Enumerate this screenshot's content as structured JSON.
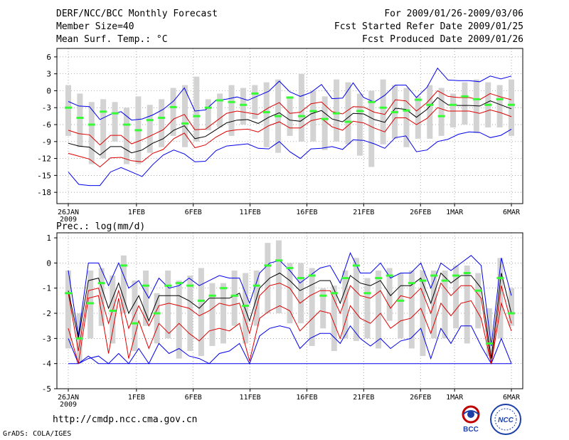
{
  "header": {
    "title": "DERF/NCC/BCC Monthly Forecast",
    "member_size": "Member Size=40",
    "variable": "Mean Surf. Temp.: °C",
    "period": "For 2009/01/26-2009/03/06",
    "fcst_started": "Fcst Started Refer Date 2009/01/25",
    "fcst_produced": "Fcst Produced Date 2009/01/26"
  },
  "footer": {
    "url": "http://cmdp.ncc.cma.gov.cn",
    "credit": "GrADS: COLA/IGES",
    "logo_bcc_text": "BCC",
    "logo_ncc_text": "NCC"
  },
  "colors": {
    "box": "#d3d3d3",
    "green": "#33ff33",
    "mean": "#000000",
    "quartile": "#dd0000",
    "envelope": "#0000ee",
    "grid": "#888888"
  },
  "chart_data": [
    {
      "type": "line",
      "title": "Mean Surf. Temp.: °C",
      "xlabel": "",
      "ylabel": "°C",
      "year_label": "2009",
      "x_tick_labels": [
        "26JAN",
        "1FEB",
        "6FEB",
        "11FEB",
        "16FEB",
        "21FEB",
        "26FEB",
        "1MAR",
        "6MAR"
      ],
      "x_tick_days": [
        0,
        6,
        11,
        16,
        21,
        26,
        31,
        34,
        39
      ],
      "days": 40,
      "ylim": [
        -20,
        7.5
      ],
      "y_ticks": [
        6,
        3,
        0,
        -3,
        -6,
        -9,
        -12,
        -15,
        -18
      ],
      "grid": true,
      "series": [
        {
          "name": "max",
          "values": [
            -1.9,
            -2.7,
            -2.8,
            -5.1,
            -4.2,
            -3.7,
            -5.2,
            -5.0,
            -4.3,
            -3.3,
            -1.8,
            0.5,
            -3.6,
            -3.4,
            -1.7,
            -1.5,
            -1.1,
            -1.7,
            -0.9,
            -0.1,
            1.7,
            -0.2,
            -1.0,
            -0.3,
            1.1,
            -1.4,
            -1.3,
            1.4,
            -1.2,
            -2.0,
            -0.8,
            1.0,
            1.0,
            -1.2,
            0.6,
            4.0,
            1.9,
            1.8,
            1.8,
            1.6,
            2.6,
            2.1,
            2.6
          ]
        },
        {
          "name": "upper",
          "values": [
            -7.0,
            -7.6,
            -7.8,
            -9.6,
            -7.9,
            -7.9,
            -9.4,
            -8.7,
            -7.8,
            -6.9,
            -5.0,
            -4.2,
            -6.9,
            -6.8,
            -5.4,
            -4.0,
            -3.6,
            -3.9,
            -4.2,
            -3.0,
            -2.1,
            -4.0,
            -3.8,
            -2.3,
            -2.0,
            -3.7,
            -4.1,
            -2.8,
            -2.9,
            -3.8,
            -4.2,
            -1.6,
            -1.8,
            -3.6,
            -2.1,
            0.0,
            -1.0,
            -1.2,
            -1.2,
            -1.6,
            -0.5,
            -1.1,
            -1.6
          ]
        },
        {
          "name": "mean",
          "values": [
            -9.3,
            -9.8,
            -10.0,
            -11.4,
            -9.9,
            -9.9,
            -11.0,
            -10.5,
            -9.3,
            -8.5,
            -7.0,
            -6.2,
            -8.5,
            -8.1,
            -6.9,
            -5.7,
            -5.2,
            -5.1,
            -5.8,
            -4.7,
            -3.9,
            -5.2,
            -5.4,
            -4.1,
            -3.5,
            -5.0,
            -5.5,
            -4.0,
            -4.1,
            -5.1,
            -5.6,
            -3.1,
            -3.3,
            -4.7,
            -3.3,
            -1.2,
            -2.5,
            -2.6,
            -2.6,
            -2.7,
            -1.8,
            -2.5,
            -3.2
          ]
        },
        {
          "name": "lower",
          "values": [
            -11.1,
            -11.6,
            -12.1,
            -13.5,
            -11.9,
            -11.8,
            -12.4,
            -12.6,
            -11.1,
            -10.4,
            -8.5,
            -7.5,
            -10.1,
            -9.6,
            -8.2,
            -7.2,
            -6.9,
            -6.8,
            -7.3,
            -6.2,
            -5.5,
            -6.6,
            -6.6,
            -5.3,
            -4.9,
            -6.4,
            -7.0,
            -5.4,
            -5.7,
            -6.6,
            -7.3,
            -4.8,
            -4.8,
            -6.0,
            -4.9,
            -3.0,
            -3.6,
            -3.6,
            -3.6,
            -4.0,
            -3.4,
            -3.9,
            -4.6
          ]
        },
        {
          "name": "min",
          "values": [
            -14.4,
            -16.6,
            -16.8,
            -16.8,
            -14.4,
            -13.6,
            -14.4,
            -15.2,
            -13.1,
            -11.4,
            -10.5,
            -11.2,
            -12.6,
            -12.5,
            -10.6,
            -9.8,
            -9.6,
            -9.4,
            -10.2,
            -10.3,
            -9.0,
            -10.8,
            -12.0,
            -10.3,
            -10.2,
            -9.9,
            -10.4,
            -8.7,
            -8.8,
            -9.4,
            -10.2,
            -8.3,
            -8.0,
            -10.8,
            -10.5,
            -9.0,
            -8.6,
            -7.7,
            -7.3,
            -7.4,
            -8.3,
            -7.9,
            -6.8
          ]
        },
        {
          "name": "green",
          "values": [
            -3.0,
            -4.8,
            -6.0,
            -3.7,
            -4.0,
            -6.0,
            -7.0,
            -5.2,
            -4.8,
            -2.9,
            -5.8,
            -4.5,
            -3.0,
            -1.7,
            -2.0,
            -2.5,
            -0.5,
            -3.8,
            -4.5,
            -1.2,
            -4.5,
            -3.6,
            -5.0,
            -4.0,
            -5.5,
            -3.6,
            -2.0,
            -3.0,
            -3.8,
            -3.5,
            -1.6,
            -2.5,
            -4.5,
            -2.5,
            -1.0,
            -1.5,
            -2.5,
            -1.5,
            -2.5
          ]
        },
        {
          "name": "box_top",
          "values": [
            1.0,
            -0.5,
            -2.0,
            -1.5,
            -2.0,
            -3.0,
            -1.0,
            -2.5,
            -1.5,
            0.5,
            1.0,
            2.5,
            -1.5,
            -0.5,
            1.0,
            0.5,
            1.0,
            1.5,
            2.0,
            -1.0,
            3.0,
            0.0,
            -1.0,
            2.0,
            1.5,
            -0.5,
            0.0,
            2.0,
            1.0,
            0.5,
            -1.0,
            1.0,
            0.5,
            -0.5,
            1.5,
            2.0,
            1.5,
            1.0,
            2.0
          ]
        },
        {
          "name": "box_bottom",
          "values": [
            -8.0,
            -10.0,
            -13.0,
            -12.0,
            -9.0,
            -13.0,
            -13.0,
            -11.0,
            -10.0,
            -8.0,
            -10.0,
            -9.0,
            -7.0,
            -6.5,
            -8.0,
            -6.0,
            -5.0,
            -10.0,
            -11.0,
            -8.0,
            -9.0,
            -9.0,
            -10.5,
            -9.0,
            -9.5,
            -11.5,
            -13.5,
            -9.5,
            -8.5,
            -10.0,
            -8.5,
            -8.5,
            -8.0,
            -6.5,
            -6.0,
            -7.5,
            -6.5,
            -6.5,
            -8.0
          ]
        }
      ]
    },
    {
      "type": "line",
      "title": "Prec.: log(mm/d)",
      "xlabel": "",
      "ylabel": "log(mm/d)",
      "year_label": "2009",
      "x_tick_labels": [
        "26JAN",
        "1FEB",
        "6FEB",
        "11FEB",
        "16FEB",
        "21FEB",
        "26FEB",
        "1MAR",
        "6MAR"
      ],
      "x_tick_days": [
        0,
        6,
        11,
        16,
        21,
        26,
        31,
        34,
        39
      ],
      "days": 40,
      "ylim": [
        -5,
        1.2
      ],
      "y_ticks": [
        1,
        0,
        -1,
        -2,
        -3,
        -4,
        -5
      ],
      "grid": true,
      "series": [
        {
          "name": "max",
          "values": [
            -0.3,
            -2.9,
            0.0,
            0.0,
            -0.9,
            0.0,
            -1.0,
            -0.7,
            -1.4,
            -0.6,
            -1.0,
            -0.9,
            -0.6,
            -0.9,
            -0.7,
            -0.5,
            -0.6,
            -0.6,
            -1.6,
            -0.4,
            0.0,
            0.1,
            -0.3,
            -0.8,
            -0.5,
            -0.2,
            -0.1,
            -0.8,
            0.4,
            -0.4,
            -0.4,
            0.0,
            -0.6,
            -0.4,
            -0.4,
            0.0,
            -1.0,
            0.0,
            -0.3,
            0.0,
            0.3,
            -0.1,
            -3.3,
            0.2,
            -1.3
          ]
        },
        {
          "name": "mean",
          "values": [
            -1.1,
            -3.0,
            -0.7,
            -0.6,
            -1.8,
            -0.8,
            -2.0,
            -1.3,
            -2.3,
            -1.3,
            -1.3,
            -1.3,
            -1.5,
            -1.8,
            -1.4,
            -1.4,
            -1.4,
            -1.2,
            -2.3,
            -1.0,
            -0.6,
            -0.4,
            -0.7,
            -1.1,
            -0.9,
            -0.7,
            -0.7,
            -1.6,
            -0.5,
            -0.8,
            -0.9,
            -0.7,
            -1.3,
            -0.9,
            -0.9,
            -0.6,
            -1.6,
            -0.4,
            -0.8,
            -0.5,
            -0.5,
            -1.0,
            -3.8,
            -0.4,
            -2.0
          ]
        },
        {
          "name": "upper",
          "values": [
            -1.2,
            -3.5,
            -1.1,
            -1.0,
            -2.4,
            -1.1,
            -2.6,
            -1.7,
            -2.5,
            -1.7,
            -1.6,
            -1.7,
            -1.8,
            -2.1,
            -1.9,
            -1.6,
            -1.7,
            -1.6,
            -2.8,
            -1.3,
            -0.9,
            -0.8,
            -1.0,
            -1.6,
            -1.3,
            -1.1,
            -1.1,
            -2.0,
            -0.9,
            -1.3,
            -1.4,
            -1.1,
            -1.8,
            -1.3,
            -1.4,
            -1.0,
            -2.0,
            -0.8,
            -1.3,
            -0.9,
            -0.9,
            -1.4,
            -4.0,
            -0.9,
            -2.4
          ]
        },
        {
          "name": "lower",
          "values": [
            -2.6,
            -4.0,
            -1.4,
            -1.3,
            -3.6,
            -1.4,
            -3.8,
            -2.3,
            -3.4,
            -2.4,
            -2.8,
            -2.4,
            -2.8,
            -3.1,
            -2.7,
            -2.6,
            -2.7,
            -2.4,
            -3.9,
            -2.2,
            -1.9,
            -1.7,
            -1.9,
            -2.7,
            -2.3,
            -1.9,
            -2.0,
            -3.0,
            -1.7,
            -2.2,
            -2.4,
            -2.0,
            -2.6,
            -2.3,
            -2.2,
            -1.8,
            -2.8,
            -1.6,
            -2.1,
            -1.6,
            -1.5,
            -2.2,
            -4.0,
            -1.6,
            -2.7
          ]
        },
        {
          "name": "min",
          "values": [
            -3.0,
            -4.0,
            -3.8,
            -3.7,
            -4.0,
            -3.6,
            -4.0,
            -3.4,
            -4.0,
            -3.2,
            -3.6,
            -3.4,
            -3.7,
            -3.8,
            -4.0,
            -3.6,
            -3.5,
            -3.2,
            -4.0,
            -2.9,
            -2.6,
            -2.5,
            -2.6,
            -3.4,
            -3.0,
            -2.8,
            -2.8,
            -3.2,
            -2.5,
            -3.0,
            -3.3,
            -3.0,
            -3.4,
            -3.1,
            -3.0,
            -2.6,
            -3.8,
            -2.6,
            -3.2,
            -2.5,
            -2.5,
            -3.3,
            -4.0,
            -3.0,
            -4.0
          ]
        },
        {
          "name": "floor",
          "values": [
            -4.0,
            -4.0,
            -3.7,
            -4.0,
            -4.0,
            -4.0,
            -4.0,
            -4.0,
            -4.0,
            -4.0,
            -4.0,
            -4.0,
            -4.0,
            -4.0,
            -4.0,
            -4.0,
            -4.0,
            -4.0,
            -4.0,
            -4.0,
            -4.0,
            -4.0,
            -4.0,
            -4.0,
            -4.0,
            -4.0,
            -4.0,
            -4.0,
            -4.0,
            -4.0,
            -4.0,
            -4.0,
            -4.0,
            -4.0,
            -4.0,
            -4.0,
            -4.0,
            -4.0,
            -4.0,
            -4.0,
            -4.0,
            -4.0,
            -4.0,
            -4.0,
            -4.0
          ]
        },
        {
          "name": "green",
          "values": [
            -1.2,
            -3.0,
            -1.6,
            -0.8,
            -1.9,
            -0.1,
            -2.4,
            -0.9,
            -2.0,
            -0.9,
            -0.8,
            -0.9,
            -1.5,
            -1.3,
            -1.0,
            -1.3,
            -1.7,
            -0.9,
            -0.1,
            0.1,
            -0.2,
            -0.6,
            -0.5,
            -1.3,
            -1.2,
            -0.6,
            -0.1,
            -1.2,
            -0.6,
            -0.5,
            -1.5,
            -0.8,
            -0.7,
            -0.5,
            -0.7,
            -0.5,
            -0.4,
            -1.1,
            -3.2,
            -0.6,
            -2.0
          ]
        },
        {
          "name": "box_top",
          "values": [
            -0.3,
            -2.0,
            -0.3,
            -0.2,
            -0.5,
            0.3,
            -0.7,
            -0.3,
            -1.2,
            -0.3,
            -0.7,
            -0.5,
            -0.2,
            -0.8,
            -0.8,
            -0.3,
            -0.4,
            -0.3,
            0.8,
            0.9,
            0.0,
            0.0,
            -0.2,
            -1.0,
            -0.9,
            -0.3,
            0.2,
            -0.6,
            -0.3,
            -0.2,
            -0.4,
            -0.3,
            -0.3,
            -0.3,
            -0.3,
            -0.1,
            -0.1,
            -0.4,
            -1.8,
            0.2,
            -1.0
          ]
        },
        {
          "name": "box_bottom",
          "values": [
            -3.4,
            -4.0,
            -3.0,
            -2.5,
            -3.2,
            -2.0,
            -3.5,
            -2.5,
            -3.2,
            -3.0,
            -3.8,
            -3.5,
            -3.7,
            -3.3,
            -3.2,
            -2.5,
            -3.2,
            -2.5,
            -2.0,
            -2.0,
            -2.4,
            -2.4,
            -3.3,
            -2.6,
            -3.5,
            -3.0,
            -3.1,
            -3.0,
            -3.4,
            -2.3,
            -3.0,
            -3.4,
            -3.7,
            -3.0,
            -3.0,
            -2.6,
            -3.2,
            -2.6,
            -3.7,
            -3.0,
            -2.5
          ]
        }
      ]
    }
  ]
}
